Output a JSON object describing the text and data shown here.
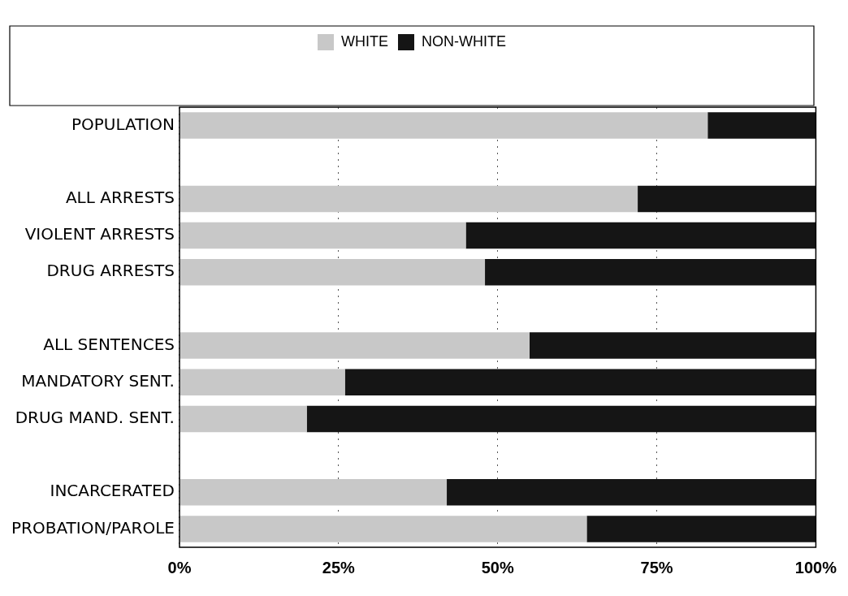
{
  "chart_data": {
    "type": "bar",
    "orientation": "horizontal",
    "stacked": true,
    "categories": [
      "POPULATION",
      null,
      "ALL ARRESTS",
      "VIOLENT ARRESTS",
      "DRUG ARRESTS",
      null,
      "ALL SENTENCES",
      "MANDATORY SENT.",
      "DRUG MAND. SENT.",
      null,
      "INCARCERATED",
      "PROBATION/PAROLE"
    ],
    "series": [
      {
        "name": "WHITE",
        "color": "#c8c8c8",
        "values": [
          83,
          null,
          72,
          45,
          48,
          null,
          55,
          26,
          20,
          null,
          42,
          64
        ]
      },
      {
        "name": "NON-WHITE",
        "color": "#151515",
        "values": [
          17,
          null,
          28,
          55,
          52,
          null,
          45,
          74,
          80,
          null,
          58,
          36
        ]
      }
    ],
    "xlim": [
      0,
      100
    ],
    "xticks": [
      {
        "value": 0,
        "label": "0%"
      },
      {
        "value": 25,
        "label": "25%"
      },
      {
        "value": 50,
        "label": "50%"
      },
      {
        "value": 75,
        "label": "75%"
      },
      {
        "value": 100,
        "label": "100%"
      }
    ],
    "grid": "x",
    "legend": "top"
  }
}
